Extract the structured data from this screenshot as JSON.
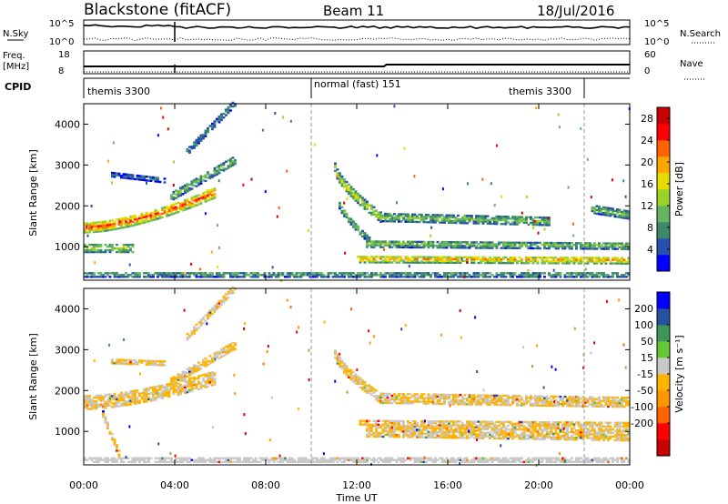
{
  "header": {
    "station": "Blackstone (fitACF)",
    "beam": "Beam 11",
    "date": "18/Jul/2016"
  },
  "top_panels": {
    "nsky_label": "N.Sky",
    "nsky_ticks": [
      "10^5",
      "10^0"
    ],
    "nsearch_label": "N.Search",
    "nsearch_ticks": [
      "10^5",
      "10^0"
    ],
    "freq_label": "Freq.",
    "freq_unit": "[MHz]",
    "freq_ticks": [
      "18",
      "8"
    ],
    "nave_label": "Nave",
    "nave_ticks": [
      "60",
      "0"
    ],
    "cpid_label": "CPID",
    "cpid_segments": [
      {
        "label": "themis 3300",
        "start_h": 0,
        "end_h": 10.0
      },
      {
        "label": "normal (fast) 151",
        "start_h": 10.0,
        "end_h": 22.0
      },
      {
        "label": "themis 3300",
        "start_h": 16.5,
        "end_h": 22.0,
        "label_only": true
      }
    ],
    "cpid_dividers_h": [
      10.0,
      22.0
    ]
  },
  "chart_data": [
    {
      "type": "heatmap",
      "title": "",
      "xlabel": "Time UT",
      "ylabel": "Slant Range [km]",
      "xlim_hours": [
        0,
        24
      ],
      "x_ticks": [
        "00:00",
        "04:00",
        "08:00",
        "12:00",
        "16:00",
        "20:00",
        "00:00"
      ],
      "ylim_km": [
        180,
        4500
      ],
      "y_ticks": [
        1000,
        2000,
        3000,
        4000
      ],
      "colorbar": {
        "label": "Power [dB]",
        "range": [
          0,
          30
        ],
        "ticks": [
          "4",
          "8",
          "12",
          "16",
          "20",
          "24",
          "28"
        ],
        "colors": [
          "#0000ff",
          "#2850b0",
          "#3c8a6a",
          "#64b464",
          "#9bd228",
          "#e6dc00",
          "#ffa500",
          "#ff6400",
          "#ff0000",
          "#c80000"
        ]
      },
      "features": [
        {
          "name": "band",
          "t_start_h": 0,
          "t_end_h": 5.7,
          "range_start_km": 1450,
          "range_end_km": 2300,
          "curve": 1.6,
          "width_km": 260,
          "value": 24
        },
        {
          "name": "band",
          "t_start_h": 3.8,
          "t_end_h": 6.6,
          "range_start_km": 2200,
          "range_end_km": 3100,
          "curve": 1,
          "width_km": 200,
          "value": 12
        },
        {
          "name": "band",
          "t_start_h": 4.5,
          "t_end_h": 6.6,
          "range_start_km": 3300,
          "range_end_km": 4500,
          "curve": 1,
          "width_km": 160,
          "value": 8
        },
        {
          "name": "band",
          "t_start_h": 1.2,
          "t_end_h": 3.6,
          "range_start_km": 2750,
          "range_end_km": 2600,
          "curve": 1,
          "width_km": 120,
          "value": 6
        },
        {
          "name": "band",
          "t_start_h": 0,
          "t_end_h": 2.2,
          "range_start_km": 950,
          "range_end_km": 950,
          "curve": 1,
          "width_km": 220,
          "value": 14
        },
        {
          "name": "band",
          "t_start_h": 11.0,
          "t_end_h": 13.0,
          "range_start_km": 2900,
          "range_end_km": 1700,
          "curve": 0.7,
          "width_km": 230,
          "value": 16
        },
        {
          "name": "band",
          "t_start_h": 13.0,
          "t_end_h": 20.5,
          "range_start_km": 1700,
          "range_end_km": 1600,
          "curve": 1,
          "width_km": 200,
          "value": 12
        },
        {
          "name": "band",
          "t_start_h": 22.3,
          "t_end_h": 24,
          "range_start_km": 1900,
          "range_end_km": 1750,
          "curve": 1,
          "width_km": 200,
          "value": 12
        },
        {
          "name": "band",
          "t_start_h": 11.2,
          "t_end_h": 12.7,
          "range_start_km": 2000,
          "range_end_km": 1050,
          "curve": 0.8,
          "width_km": 180,
          "value": 10
        },
        {
          "name": "band",
          "t_start_h": 12.4,
          "t_end_h": 24,
          "range_start_km": 1050,
          "range_end_km": 1000,
          "curve": 1,
          "width_km": 170,
          "value": 12
        },
        {
          "name": "band",
          "t_start_h": 12.0,
          "t_end_h": 24,
          "range_start_km": 680,
          "range_end_km": 650,
          "curve": 1,
          "width_km": 180,
          "value": 20
        },
        {
          "name": "band",
          "t_start_h": 0,
          "t_end_h": 24,
          "range_start_km": 300,
          "range_end_km": 300,
          "curve": 1,
          "width_km": 130,
          "value": 10
        }
      ]
    },
    {
      "type": "heatmap",
      "title": "",
      "xlabel": "Time UT",
      "ylabel": "Slant Range [km]",
      "xlim_hours": [
        0,
        24
      ],
      "x_ticks": [
        "00:00",
        "04:00",
        "08:00",
        "12:00",
        "16:00",
        "20:00",
        "00:00"
      ],
      "ylim_km": [
        180,
        4500
      ],
      "y_ticks": [
        1000,
        2000,
        3000,
        4000
      ],
      "colorbar": {
        "label": "Velocity [m s⁻¹]",
        "range": [
          -250,
          250
        ],
        "ticks": [
          "200",
          "100",
          "50",
          "15",
          "-15",
          "-50",
          "-100",
          "-200"
        ],
        "colors": [
          "#c80000",
          "#ff0000",
          "#ff6400",
          "#ff9600",
          "#ffb400",
          "#c8c8c8",
          "#64c832",
          "#3c965a",
          "#2850a0",
          "#0000ff"
        ]
      },
      "features": [
        {
          "name": "band",
          "t_start_h": 0,
          "t_end_h": 5.7,
          "range_start_km": 1700,
          "range_end_km": 2300,
          "curve": 1.6,
          "width_km": 360,
          "value": 0
        },
        {
          "name": "band",
          "t_start_h": 3.8,
          "t_end_h": 6.6,
          "range_start_km": 2200,
          "range_end_km": 3100,
          "curve": 1,
          "width_km": 220,
          "value": 0
        },
        {
          "name": "band",
          "t_start_h": 4.5,
          "t_end_h": 6.6,
          "range_start_km": 3300,
          "range_end_km": 4500,
          "curve": 1,
          "width_km": 160,
          "value": 0
        },
        {
          "name": "band",
          "t_start_h": 1.2,
          "t_end_h": 3.6,
          "range_start_km": 2700,
          "range_end_km": 2650,
          "curve": 1,
          "width_km": 120,
          "value": 0
        },
        {
          "name": "band",
          "t_start_h": 0.8,
          "t_end_h": 1.6,
          "range_start_km": 1400,
          "range_end_km": 300,
          "curve": 1,
          "width_km": 150,
          "value": 0
        },
        {
          "name": "band",
          "t_start_h": 11.0,
          "t_end_h": 13.0,
          "range_start_km": 2900,
          "range_end_km": 1800,
          "curve": 0.7,
          "width_km": 260,
          "value": 0
        },
        {
          "name": "band",
          "t_start_h": 13.0,
          "t_end_h": 24,
          "range_start_km": 1800,
          "range_end_km": 1700,
          "curve": 1,
          "width_km": 260,
          "value": 0
        },
        {
          "name": "band",
          "t_start_h": 12.4,
          "t_end_h": 24,
          "range_start_km": 1000,
          "range_end_km": 900,
          "curve": 1,
          "width_km": 300,
          "value": 0
        },
        {
          "name": "band",
          "t_start_h": 12.0,
          "t_end_h": 24,
          "range_start_km": 1200,
          "range_end_km": 1150,
          "curve": 1,
          "width_km": 120,
          "value": 0
        },
        {
          "name": "band",
          "t_start_h": 0,
          "t_end_h": 24,
          "range_start_km": 280,
          "range_end_km": 280,
          "curve": 1,
          "width_km": 110,
          "value": 30
        }
      ]
    }
  ]
}
